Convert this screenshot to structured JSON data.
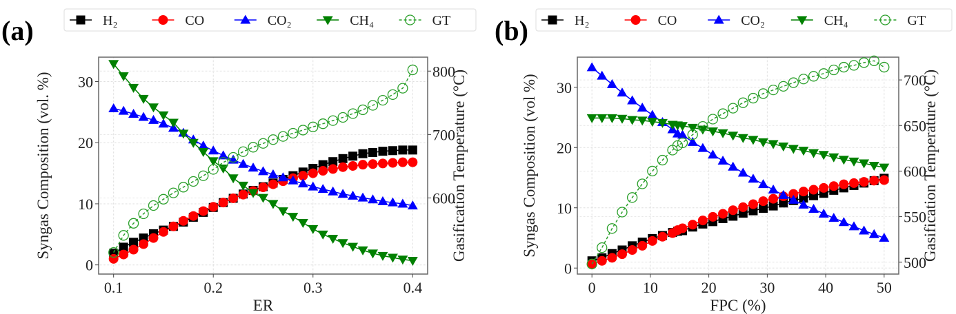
{
  "chart_data": [
    {
      "type": "line",
      "panel_label": "(a)",
      "xlabel": "ER",
      "ylabel": "Syngas Composition (vol. %)",
      "y2label": "Gasification Temperature (°C)",
      "xlim": [
        0.085,
        0.415
      ],
      "ylim": [
        -1.5,
        34
      ],
      "y2lim": [
        480,
        822
      ],
      "xticks": [
        0.1,
        0.2,
        0.3,
        0.4
      ],
      "xtick_labels": [
        "0.1",
        "0.2",
        "0.3",
        "0.4"
      ],
      "yticks": [
        0,
        10,
        20,
        30
      ],
      "ytick_labels": [
        "0",
        "10",
        "20",
        "30"
      ],
      "y2ticks": [
        600,
        700,
        800
      ],
      "y2tick_labels": [
        "600",
        "700",
        "800"
      ],
      "grid": true,
      "legend_position": "top",
      "x": [
        0.1,
        0.11,
        0.12,
        0.13,
        0.14,
        0.15,
        0.16,
        0.17,
        0.18,
        0.19,
        0.2,
        0.21,
        0.22,
        0.23,
        0.24,
        0.25,
        0.26,
        0.27,
        0.28,
        0.29,
        0.3,
        0.31,
        0.32,
        0.33,
        0.34,
        0.35,
        0.36,
        0.37,
        0.38,
        0.39,
        0.4
      ],
      "series": [
        {
          "name": "H₂",
          "axis": "left",
          "color": "#000000",
          "marker": "square",
          "dashed": false,
          "values": [
            1.9,
            2.9,
            3.7,
            4.4,
            5.1,
            5.7,
            6.3,
            7.0,
            7.8,
            8.6,
            9.4,
            10.2,
            10.9,
            11.6,
            12.2,
            12.8,
            13.4,
            14.0,
            14.6,
            15.2,
            15.8,
            16.4,
            16.9,
            17.4,
            17.8,
            18.2,
            18.4,
            18.6,
            18.7,
            18.8,
            18.8
          ]
        },
        {
          "name": "CO",
          "axis": "left",
          "color": "#ff0000",
          "marker": "circle",
          "dashed": false,
          "values": [
            1.0,
            1.7,
            2.5,
            3.4,
            4.4,
            5.4,
            6.3,
            7.2,
            8.0,
            8.8,
            9.5,
            10.2,
            10.9,
            11.5,
            12.1,
            12.7,
            13.2,
            13.7,
            14.2,
            14.6,
            15.0,
            15.4,
            15.7,
            16.0,
            16.2,
            16.4,
            16.5,
            16.6,
            16.7,
            16.8,
            16.8
          ]
        },
        {
          "name": "CO₂",
          "axis": "left",
          "color": "#0000ff",
          "marker": "triangle-up",
          "dashed": false,
          "values": [
            25.6,
            25.2,
            24.7,
            24.2,
            23.7,
            23.1,
            22.4,
            21.6,
            20.5,
            19.5,
            18.7,
            17.9,
            17.2,
            16.5,
            15.9,
            15.3,
            14.8,
            14.3,
            13.8,
            13.3,
            12.8,
            12.4,
            12.0,
            11.6,
            11.3,
            11.0,
            10.7,
            10.4,
            10.2,
            10.0,
            9.7
          ]
        },
        {
          "name": "CH₄",
          "axis": "left",
          "color": "#008000",
          "marker": "triangle-down",
          "dashed": false,
          "values": [
            32.9,
            30.9,
            29.0,
            27.2,
            25.8,
            24.5,
            23.3,
            21.5,
            20.0,
            18.5,
            17.0,
            15.8,
            14.2,
            13.0,
            11.8,
            11.0,
            10.0,
            8.8,
            7.9,
            6.9,
            5.9,
            5.0,
            4.3,
            3.6,
            3.0,
            2.4,
            1.9,
            1.5,
            1.2,
            0.9,
            0.7
          ]
        },
        {
          "name": "GT",
          "axis": "right",
          "color": "#2ca02c",
          "marker": "open-circle",
          "dashed": true,
          "values": [
            514,
            541,
            560,
            575,
            588,
            598,
            608,
            617,
            626,
            635,
            645,
            656,
            664,
            673,
            680,
            686,
            692,
            697,
            702,
            707,
            712,
            717,
            722,
            727,
            733,
            739,
            746,
            754,
            763,
            773,
            802
          ]
        }
      ]
    },
    {
      "type": "line",
      "panel_label": "(b)",
      "xlabel": "FPC (%)",
      "ylabel": "Syngas Composition (vol %)",
      "y2label": "Gasification Temperature (°C)",
      "xlim": [
        -2.5,
        52.5
      ],
      "ylim": [
        -1.0,
        35
      ],
      "y2lim": [
        487,
        725
      ],
      "xticks": [
        0,
        10,
        20,
        30,
        40,
        50
      ],
      "xtick_labels": [
        "0",
        "10",
        "20",
        "30",
        "40",
        "50"
      ],
      "yticks": [
        0,
        10,
        20,
        30
      ],
      "ytick_labels": [
        "0",
        "10",
        "20",
        "30"
      ],
      "y2ticks": [
        500,
        550,
        600,
        650,
        700
      ],
      "y2tick_labels": [
        "500",
        "550",
        "600",
        "650",
        "700"
      ],
      "grid": true,
      "legend_position": "top",
      "x": [
        0,
        1.72,
        3.45,
        5.17,
        6.9,
        8.62,
        10.34,
        12.07,
        13.79,
        14.66,
        15.5,
        17.24,
        18.97,
        20.69,
        22.41,
        24.14,
        25.86,
        27.59,
        29.31,
        31.03,
        32.76,
        34.48,
        36.21,
        37.93,
        39.66,
        41.38,
        43.1,
        44.83,
        46.55,
        48.28,
        50
      ],
      "series": [
        {
          "name": "H₂",
          "axis": "left",
          "color": "#000000",
          "marker": "square",
          "dashed": false,
          "values": [
            1.2,
            1.7,
            2.4,
            3.0,
            3.7,
            4.3,
            4.9,
            5.4,
            5.9,
            6.1,
            6.2,
            6.8,
            7.3,
            7.7,
            8.2,
            8.6,
            9.1,
            9.5,
            9.9,
            10.3,
            10.8,
            11.2,
            11.6,
            12.0,
            12.4,
            12.9,
            13.3,
            13.7,
            14.1,
            14.5,
            14.9
          ]
        },
        {
          "name": "CO",
          "axis": "left",
          "color": "#ff0000",
          "marker": "circle",
          "dashed": false,
          "values": [
            0.7,
            1.2,
            1.7,
            2.3,
            3.0,
            3.7,
            4.5,
            5.2,
            5.8,
            6.3,
            6.6,
            7.2,
            7.9,
            8.5,
            9.0,
            9.6,
            10.1,
            10.6,
            11.1,
            11.5,
            11.9,
            12.3,
            12.7,
            13.0,
            13.3,
            13.6,
            13.9,
            14.1,
            14.3,
            14.5,
            14.6
          ]
        },
        {
          "name": "CO₂",
          "axis": "left",
          "color": "#0000ff",
          "marker": "triangle-up",
          "dashed": false,
          "values": [
            33.3,
            31.9,
            30.5,
            29.1,
            27.8,
            26.6,
            25.4,
            24.2,
            23.0,
            22.3,
            22.1,
            20.9,
            19.9,
            18.8,
            17.8,
            16.8,
            15.8,
            14.8,
            13.9,
            13.0,
            12.1,
            11.3,
            10.5,
            9.8,
            9.0,
            8.3,
            7.6,
            6.9,
            6.2,
            5.6,
            5.0
          ]
        },
        {
          "name": "CH₄",
          "axis": "left",
          "color": "#008000",
          "marker": "triangle-down",
          "dashed": false,
          "values": [
            24.9,
            24.9,
            24.9,
            24.8,
            24.6,
            24.5,
            24.3,
            24.1,
            23.8,
            23.7,
            23.6,
            23.3,
            23.0,
            22.7,
            22.4,
            22.0,
            21.6,
            21.3,
            20.9,
            20.6,
            20.2,
            19.8,
            19.5,
            19.1,
            18.8,
            18.4,
            18.0,
            17.7,
            17.4,
            17.0,
            16.7
          ]
        },
        {
          "name": "GT",
          "axis": "right",
          "color": "#2ca02c",
          "marker": "open-circle",
          "dashed": true,
          "values": [
            498,
            516,
            537,
            555,
            571,
            586,
            600,
            612,
            623,
            628,
            631,
            640,
            649,
            657,
            663,
            669,
            675,
            680,
            685,
            689,
            693,
            697,
            701,
            704,
            707,
            711,
            714,
            716,
            719,
            721,
            714
          ]
        }
      ]
    }
  ],
  "legend": {
    "items": [
      {
        "label": "H₂",
        "color": "#000000",
        "marker": "square",
        "dashed": false
      },
      {
        "label": "CO",
        "color": "#ff0000",
        "marker": "circle",
        "dashed": false
      },
      {
        "label": "CO₂",
        "color": "#0000ff",
        "marker": "triangle-up",
        "dashed": false
      },
      {
        "label": "CH₄",
        "color": "#008000",
        "marker": "triangle-down",
        "dashed": false
      },
      {
        "label": "GT",
        "color": "#2ca02c",
        "marker": "open-circle",
        "dashed": true
      }
    ]
  }
}
